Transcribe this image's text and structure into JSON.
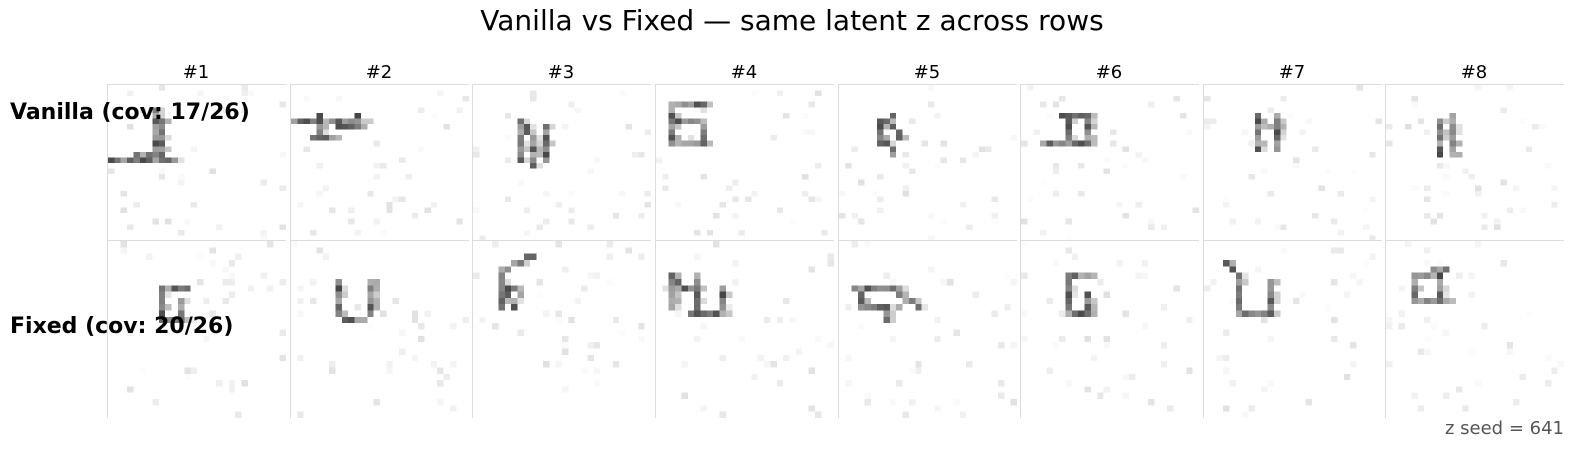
{
  "title": "Vanilla vs Fixed — same latent z across rows",
  "columns": [
    "#1",
    "#2",
    "#3",
    "#4",
    "#5",
    "#6",
    "#7",
    "#8"
  ],
  "rows": [
    {
      "label": "Vanilla (cov: 17/26)"
    },
    {
      "label": "Fixed (cov: 20/26)"
    }
  ],
  "footer": "z seed = 641"
}
